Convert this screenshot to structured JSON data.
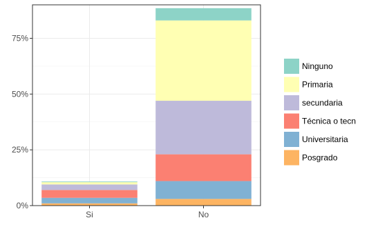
{
  "chart_data": {
    "type": "bar",
    "stacked": true,
    "categories": [
      "Si",
      "No"
    ],
    "series": [
      {
        "name": "Ninguno",
        "color": "#8DD3C7",
        "values": [
          0.3,
          5.5
        ]
      },
      {
        "name": "Primaria",
        "color": "#FFFFB3",
        "values": [
          1.0,
          36.0
        ]
      },
      {
        "name": "secundaria",
        "color": "#BEBADA",
        "values": [
          2.5,
          24.0
        ]
      },
      {
        "name": "Técnica o tecn",
        "color": "#FB8072",
        "values": [
          3.5,
          12.0
        ]
      },
      {
        "name": "Universitaria",
        "color": "#80B1D3",
        "values": [
          2.5,
          8.0
        ]
      },
      {
        "name": "Posgrado",
        "color": "#FDB462",
        "values": [
          1.0,
          3.0
        ]
      }
    ],
    "ylim": [
      0,
      90
    ],
    "yticks": [
      0,
      25,
      50,
      75
    ],
    "ytick_labels": [
      "0%",
      "25%",
      "50%",
      "75%"
    ],
    "xlabel": "",
    "ylabel": "",
    "grid": true,
    "legend_position": "right"
  }
}
